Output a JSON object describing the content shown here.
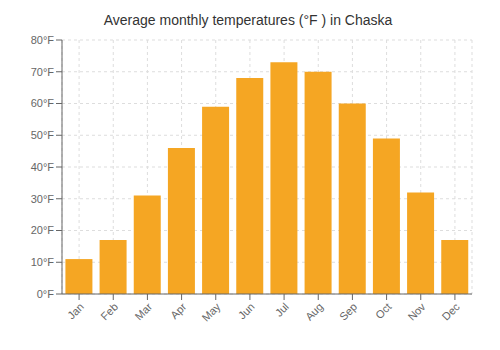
{
  "chart_data": {
    "type": "bar",
    "title": "Average monthly temperatures (°F ) in Chaska",
    "categories": [
      "Jan",
      "Feb",
      "Mar",
      "Apr",
      "May",
      "Jun",
      "Jul",
      "Aug",
      "Sep",
      "Oct",
      "Nov",
      "Dec"
    ],
    "values": [
      11,
      17,
      31,
      46,
      59,
      68,
      73,
      70,
      60,
      49,
      32,
      17
    ],
    "color": "#F5A623",
    "ylim": [
      0,
      80
    ],
    "yticks": [
      {
        "value": 0,
        "label": "0°F"
      },
      {
        "value": 10,
        "label": "10°F"
      },
      {
        "value": 20,
        "label": "20°F"
      },
      {
        "value": 30,
        "label": "30°F"
      },
      {
        "value": 40,
        "label": "40°F"
      },
      {
        "value": 50,
        "label": "50°F"
      },
      {
        "value": 60,
        "label": "60°F"
      },
      {
        "value": 70,
        "label": "70°F"
      },
      {
        "value": 80,
        "label": "80°F"
      }
    ],
    "grid": true
  }
}
